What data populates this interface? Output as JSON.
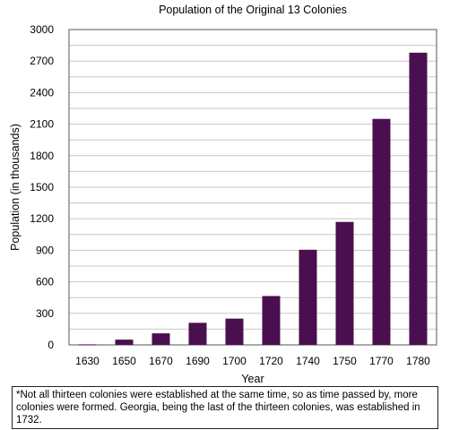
{
  "chart_data": {
    "type": "bar",
    "title": "Population of the Original 13 Colonies",
    "xlabel": "Year",
    "ylabel": "Population (in thousands)",
    "categories": [
      "1630",
      "1650",
      "1670",
      "1690",
      "1700",
      "1720",
      "1740",
      "1750",
      "1770",
      "1780"
    ],
    "values": [
      5,
      50,
      110,
      210,
      250,
      465,
      905,
      1170,
      2150,
      2780
    ],
    "ylim": [
      0,
      3000
    ],
    "yticks": [
      0,
      300,
      600,
      900,
      1200,
      1500,
      1800,
      2100,
      2400,
      2700,
      3000
    ],
    "grid": true,
    "bar_color": "#4a0f4f"
  },
  "footnote": "*Not all thirteen colonies were established at the same time, so as time passed by, more colonies were formed. Georgia, being the last of the thirteen colonies, was established in 1732."
}
